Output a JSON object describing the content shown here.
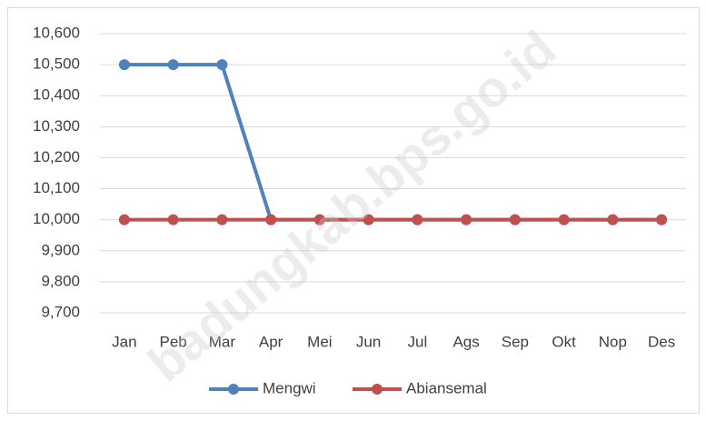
{
  "chart_data": {
    "type": "line",
    "categories": [
      "Jan",
      "Peb",
      "Mar",
      "Apr",
      "Mei",
      "Jun",
      "Jul",
      "Ags",
      "Sep",
      "Okt",
      "Nop",
      "Des"
    ],
    "series": [
      {
        "name": "Mengwi",
        "color": "#4f81bd",
        "values": [
          10500,
          10500,
          10500,
          10000,
          10000,
          10000,
          10000,
          10000,
          10000,
          10000,
          10000,
          10000
        ]
      },
      {
        "name": "Abiansemal",
        "color": "#c0504d",
        "values": [
          10000,
          10000,
          10000,
          10000,
          10000,
          10000,
          10000,
          10000,
          10000,
          10000,
          10000,
          10000
        ]
      }
    ],
    "ylim": [
      9700,
      10600
    ],
    "yticks": [
      {
        "value": 9700,
        "label": "9,700"
      },
      {
        "value": 9800,
        "label": "9,800"
      },
      {
        "value": 9900,
        "label": "9,900"
      },
      {
        "value": 10000,
        "label": "10,000"
      },
      {
        "value": 10100,
        "label": "10,100"
      },
      {
        "value": 10200,
        "label": "10,200"
      },
      {
        "value": 10300,
        "label": "10,300"
      },
      {
        "value": 10400,
        "label": "10,400"
      },
      {
        "value": 10500,
        "label": "10,500"
      },
      {
        "value": 10600,
        "label": "10,600"
      }
    ],
    "grid": true,
    "legend": "bottom",
    "watermark": "badungkab.bps.go.id"
  }
}
